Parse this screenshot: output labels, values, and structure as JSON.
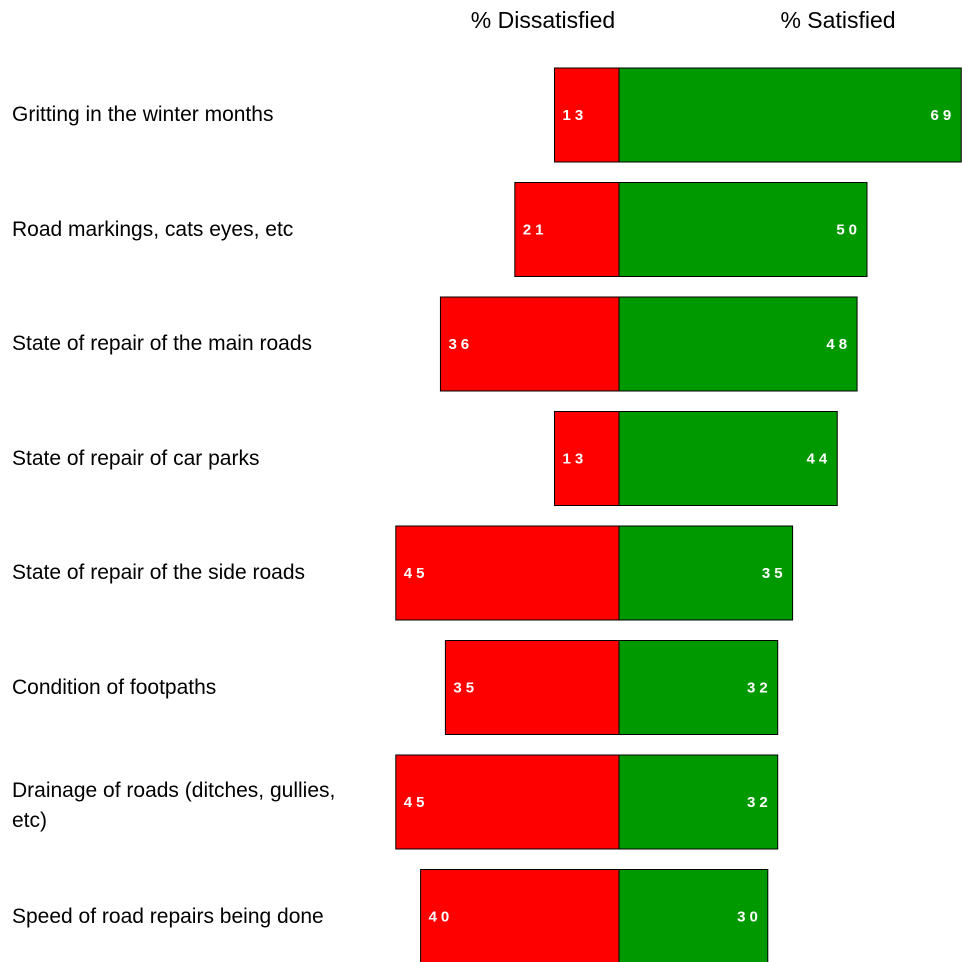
{
  "chart_data": {
    "type": "diverging-bar",
    "categories": [
      "Gritting in the winter months",
      "Road markings, cats eyes, etc",
      "State of repair of the main roads",
      "State of repair of car parks",
      "State of repair of the side roads",
      "Condition of footpaths",
      "Drainage of roads (ditches, gullies, etc)",
      "Speed of road repairs being done"
    ],
    "series": [
      {
        "name": "% Dissatisfied",
        "color": "#ff0000",
        "values": [
          13,
          21,
          36,
          13,
          45,
          35,
          45,
          40
        ]
      },
      {
        "name": "% Satisfied",
        "color": "#009900",
        "values": [
          69,
          50,
          48,
          44,
          35,
          32,
          32,
          30
        ]
      }
    ]
  }
}
